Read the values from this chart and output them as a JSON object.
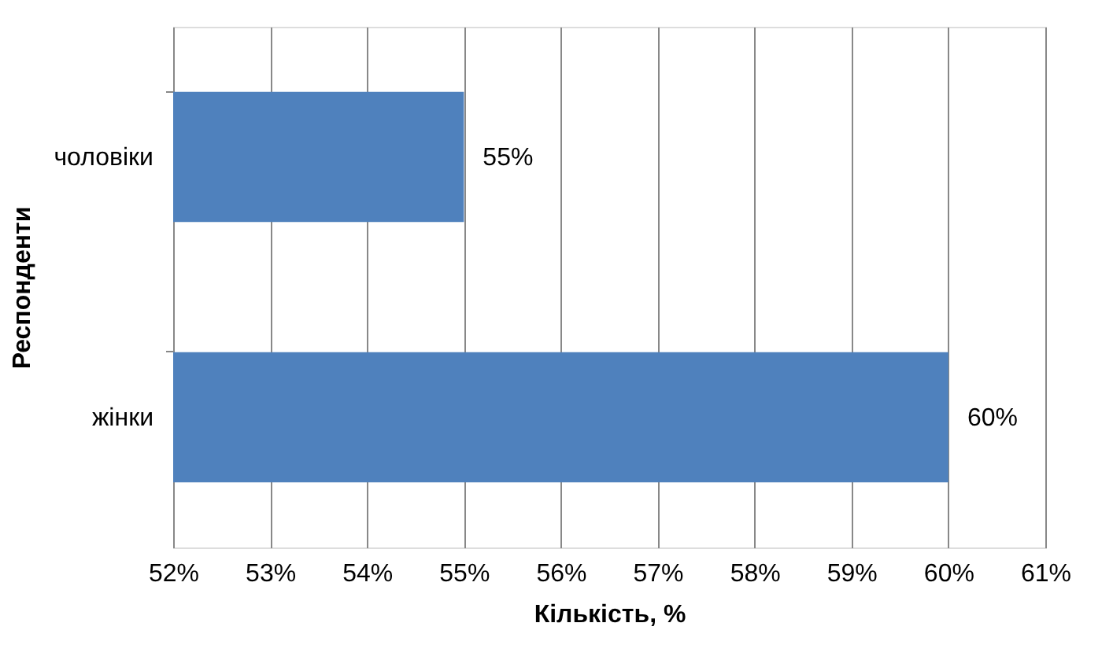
{
  "chart_data": {
    "type": "bar",
    "orientation": "horizontal",
    "categories": [
      "чоловіки",
      "жінки"
    ],
    "values": [
      55,
      60
    ],
    "value_labels": [
      "55%",
      "60%"
    ],
    "color": "#4f81bd",
    "xlabel": "Кількість, %",
    "ylabel": "Респонденти",
    "xlim": [
      52,
      61
    ],
    "xticks": [
      {
        "value": 52,
        "label": "52%"
      },
      {
        "value": 53,
        "label": "53%"
      },
      {
        "value": 54,
        "label": "54%"
      },
      {
        "value": 55,
        "label": "55%"
      },
      {
        "value": 56,
        "label": "56%"
      },
      {
        "value": 57,
        "label": "57%"
      },
      {
        "value": 58,
        "label": "58%"
      },
      {
        "value": 59,
        "label": "59%"
      },
      {
        "value": 60,
        "label": "60%"
      },
      {
        "value": 61,
        "label": "61%"
      }
    ],
    "grid": "x"
  }
}
